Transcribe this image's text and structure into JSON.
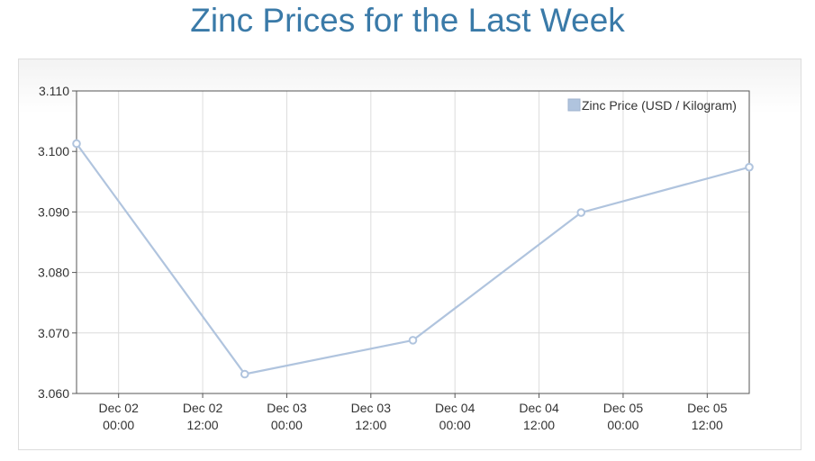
{
  "chart_data": {
    "type": "line",
    "title": "Zinc Prices for the Last Week",
    "xlabel": "",
    "ylabel": "",
    "x_ticks": [
      [
        "Dec 02",
        "00:00"
      ],
      [
        "Dec 02",
        "12:00"
      ],
      [
        "Dec 03",
        "00:00"
      ],
      [
        "Dec 03",
        "12:00"
      ],
      [
        "Dec 04",
        "00:00"
      ],
      [
        "Dec 04",
        "12:00"
      ],
      [
        "Dec 05",
        "00:00"
      ],
      [
        "Dec 05",
        "12:00"
      ]
    ],
    "y_ticks": [
      "3.060",
      "3.070",
      "3.080",
      "3.090",
      "3.100",
      "3.110"
    ],
    "ylim": [
      3.06,
      3.11
    ],
    "x_range_hours": [
      -6,
      90
    ],
    "grid": true,
    "legend_position": "top-right",
    "series": [
      {
        "name": "Zinc Price (USD / Kilogram)",
        "color": "#b0c4de",
        "points": [
          {
            "hours": -6,
            "value": 3.1013
          },
          {
            "hours": 18,
            "value": 3.0632
          },
          {
            "hours": 42,
            "value": 3.0688
          },
          {
            "hours": 66,
            "value": 3.0899
          },
          {
            "hours": 90,
            "value": 3.0974
          }
        ]
      }
    ]
  }
}
